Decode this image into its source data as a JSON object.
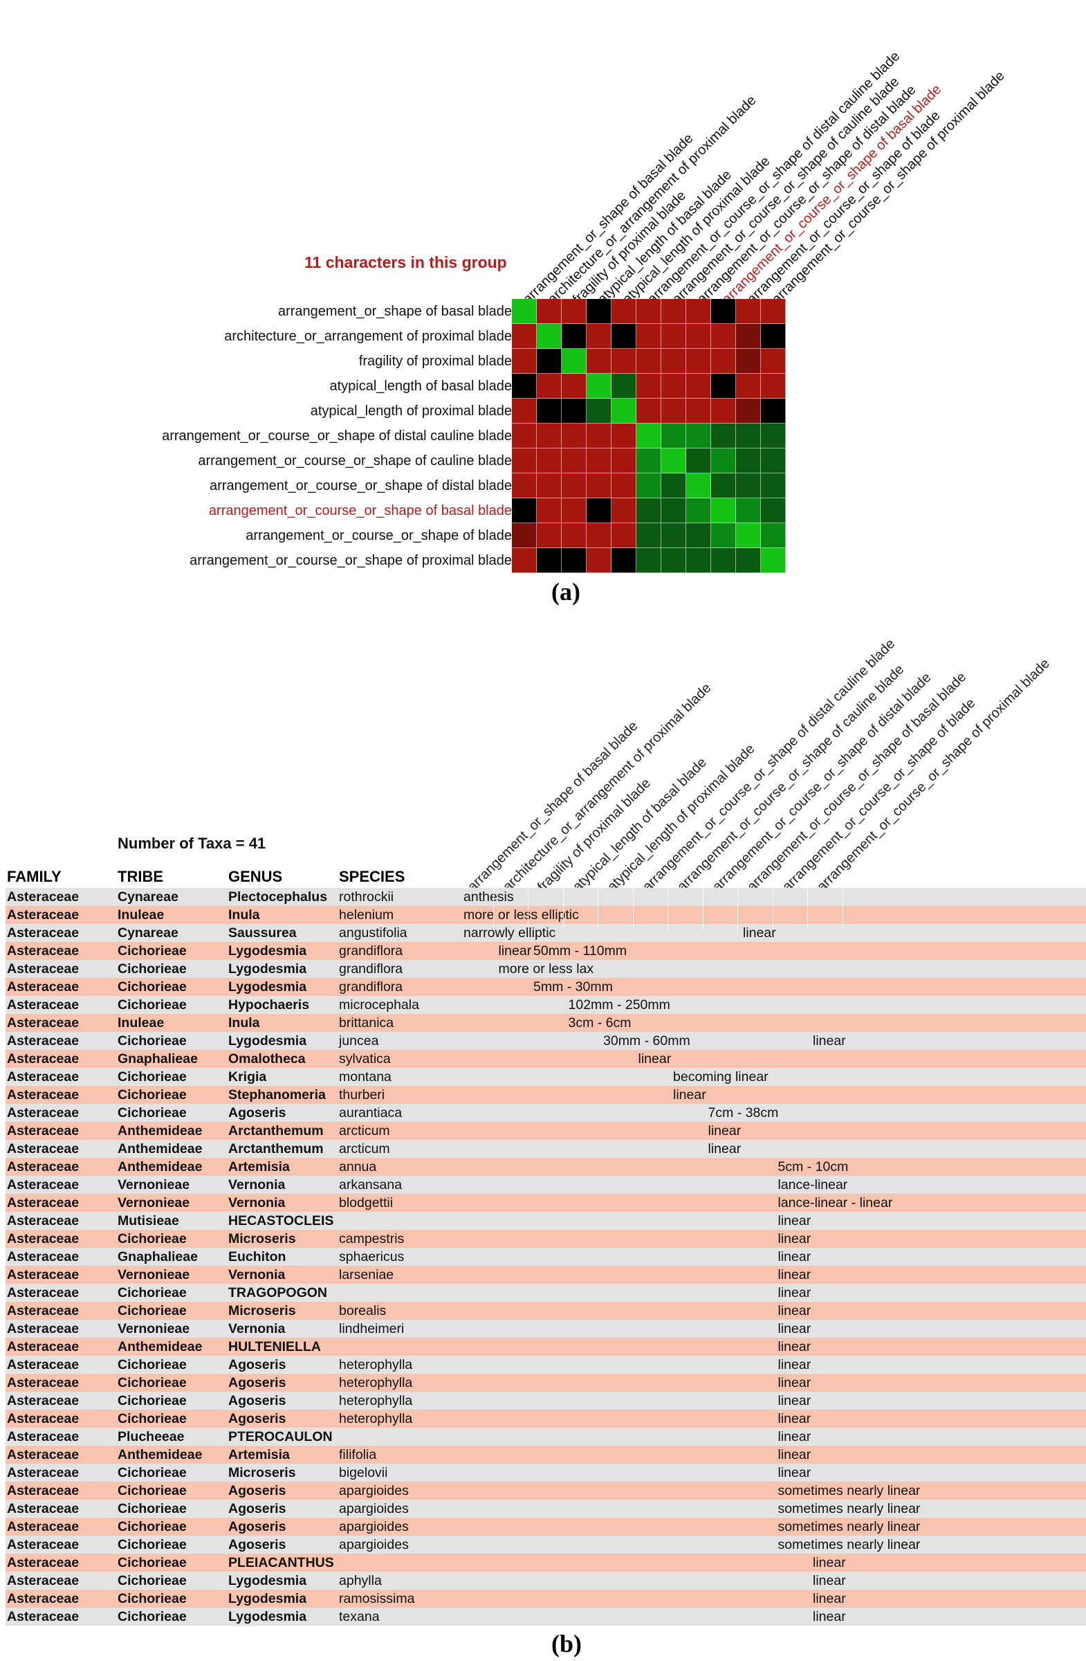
{
  "panel_a": {
    "group_title": "11 characters in this group",
    "highlight_index": 8,
    "characters": [
      "arrangement_or_shape of basal blade",
      "architecture_or_arrangement of proximal blade",
      "fragility of proximal blade",
      "atypical_length of basal blade",
      "atypical_length of proximal blade",
      "arrangement_or_course_or_shape of distal cauline blade",
      "arrangement_or_course_or_shape of cauline blade",
      "arrangement_or_course_or_shape of distal blade",
      "arrangement_or_course_or_shape of basal blade",
      "arrangement_or_course_or_shape of blade",
      "arrangement_or_course_or_shape of proximal blade"
    ],
    "colors": {
      "G": "#14c214",
      "g": "#0a8a14",
      "d": "#0a5a12",
      "k": "#0c3a0c",
      "R": "#a6180f",
      "r": "#7a0f0a",
      "B": "#000000"
    },
    "matrix": [
      "GRRBRRRRBRR",
      "RGBRBRRRRrB",
      "RBGRRRRRRrR",
      "BRRGdRRRBRR",
      "RBBdGRRRRrB",
      "RRRRRGggddd",
      "RRRRRgGdgdd",
      "RRRRRgdGddd",
      "BRRBRddgGgd",
      "rRRRRdddgGg",
      "RBBRBdddddG"
    ],
    "caption": "(a)"
  },
  "panel_b": {
    "taxa_count_label": "Number of Taxa = 41",
    "headers": [
      "FAMILY",
      "TRIBE",
      "GENUS",
      "SPECIES"
    ],
    "characters": [
      "arrangement_or_shape of basal blade",
      "architecture_or_arrangement of proximal blade",
      "fragility of proximal blade",
      "atypical_length of basal blade",
      "atypical_length of proximal blade",
      "arrangement_or_course_or_shape of distal cauline blade",
      "arrangement_or_course_or_shape of cauline blade",
      "arrangement_or_course_or_shape of distal blade",
      "arrangement_or_course_or_shape of basal blade",
      "arrangement_or_course_or_shape of blade",
      "arrangement_or_course_or_shape of proximal blade"
    ],
    "rows": [
      {
        "family": "Asteraceae",
        "tribe": "Cynareae",
        "genus": "Plectocephalus",
        "species": "rothrockii",
        "values": [
          [
            0,
            "anthesis"
          ]
        ]
      },
      {
        "family": "Asteraceae",
        "tribe": "Inuleae",
        "genus": "Inula",
        "species": "helenium",
        "values": [
          [
            0,
            "more or less elliptic"
          ]
        ]
      },
      {
        "family": "Asteraceae",
        "tribe": "Cynareae",
        "genus": "Saussurea",
        "species": "angustifolia",
        "values": [
          [
            0,
            "narrowly elliptic"
          ],
          [
            8,
            "linear"
          ]
        ]
      },
      {
        "family": "Asteraceae",
        "tribe": "Cichorieae",
        "genus": "Lygodesmia",
        "species": "grandiflora",
        "values": [
          [
            1,
            "linear"
          ],
          [
            2,
            "50mm - 110mm"
          ]
        ]
      },
      {
        "family": "Asteraceae",
        "tribe": "Cichorieae",
        "genus": "Lygodesmia",
        "species": "grandiflora",
        "values": [
          [
            1,
            "more or less lax"
          ]
        ]
      },
      {
        "family": "Asteraceae",
        "tribe": "Cichorieae",
        "genus": "Lygodesmia",
        "species": "grandiflora",
        "values": [
          [
            2,
            "5mm - 30mm"
          ]
        ]
      },
      {
        "family": "Asteraceae",
        "tribe": "Cichorieae",
        "genus": "Hypochaeris",
        "species": "microcephala",
        "values": [
          [
            3,
            "102mm - 250mm"
          ]
        ]
      },
      {
        "family": "Asteraceae",
        "tribe": "Inuleae",
        "genus": "Inula",
        "species": "brittanica",
        "values": [
          [
            3,
            "3cm - 6cm"
          ]
        ]
      },
      {
        "family": "Asteraceae",
        "tribe": "Cichorieae",
        "genus": "Lygodesmia",
        "species": "juncea",
        "values": [
          [
            4,
            "30mm - 60mm"
          ],
          [
            10,
            "linear"
          ]
        ]
      },
      {
        "family": "Asteraceae",
        "tribe": "Gnaphalieae",
        "genus": "Omalotheca",
        "species": "sylvatica",
        "values": [
          [
            5,
            "linear"
          ]
        ]
      },
      {
        "family": "Asteraceae",
        "tribe": "Cichorieae",
        "genus": "Krigia",
        "species": "montana",
        "values": [
          [
            6,
            "becoming linear"
          ]
        ]
      },
      {
        "family": "Asteraceae",
        "tribe": "Cichorieae",
        "genus": "Stephanomeria",
        "species": "thurberi",
        "values": [
          [
            6,
            "linear"
          ]
        ]
      },
      {
        "family": "Asteraceae",
        "tribe": "Cichorieae",
        "genus": "Agoseris",
        "species": "aurantiaca",
        "values": [
          [
            7,
            "7cm - 38cm"
          ]
        ]
      },
      {
        "family": "Asteraceae",
        "tribe": "Anthemideae",
        "genus": "Arctanthemum",
        "species": "arcticum",
        "values": [
          [
            7,
            "linear"
          ]
        ]
      },
      {
        "family": "Asteraceae",
        "tribe": "Anthemideae",
        "genus": "Arctanthemum",
        "species": "arcticum",
        "values": [
          [
            7,
            "linear"
          ]
        ]
      },
      {
        "family": "Asteraceae",
        "tribe": "Anthemideae",
        "genus": "Artemisia",
        "species": "annua",
        "values": [
          [
            9,
            "5cm - 10cm"
          ]
        ]
      },
      {
        "family": "Asteraceae",
        "tribe": "Vernonieae",
        "genus": "Vernonia",
        "species": "arkansana",
        "values": [
          [
            9,
            "lance-linear"
          ]
        ]
      },
      {
        "family": "Asteraceae",
        "tribe": "Vernonieae",
        "genus": "Vernonia",
        "species": "blodgettii",
        "values": [
          [
            9,
            "lance-linear - linear"
          ]
        ]
      },
      {
        "family": "Asteraceae",
        "tribe": "Mutisieae",
        "genus": "HECASTOCLEIS",
        "species": "",
        "values": [
          [
            9,
            "linear"
          ]
        ]
      },
      {
        "family": "Asteraceae",
        "tribe": "Cichorieae",
        "genus": "Microseris",
        "species": "campestris",
        "values": [
          [
            9,
            "linear"
          ]
        ]
      },
      {
        "family": "Asteraceae",
        "tribe": "Gnaphalieae",
        "genus": "Euchiton",
        "species": "sphaericus",
        "values": [
          [
            9,
            "linear"
          ]
        ]
      },
      {
        "family": "Asteraceae",
        "tribe": "Vernonieae",
        "genus": "Vernonia",
        "species": "larseniae",
        "values": [
          [
            9,
            "linear"
          ]
        ]
      },
      {
        "family": "Asteraceae",
        "tribe": "Cichorieae",
        "genus": "TRAGOPOGON",
        "species": "",
        "values": [
          [
            9,
            "linear"
          ]
        ]
      },
      {
        "family": "Asteraceae",
        "tribe": "Cichorieae",
        "genus": "Microseris",
        "species": "borealis",
        "values": [
          [
            9,
            "linear"
          ]
        ]
      },
      {
        "family": "Asteraceae",
        "tribe": "Vernonieae",
        "genus": "Vernonia",
        "species": "lindheimeri",
        "values": [
          [
            9,
            "linear"
          ]
        ]
      },
      {
        "family": "Asteraceae",
        "tribe": "Anthemideae",
        "genus": "HULTENIELLA",
        "species": "",
        "values": [
          [
            9,
            "linear"
          ]
        ]
      },
      {
        "family": "Asteraceae",
        "tribe": "Cichorieae",
        "genus": "Agoseris",
        "species": "heterophylla",
        "values": [
          [
            9,
            "linear"
          ]
        ]
      },
      {
        "family": "Asteraceae",
        "tribe": "Cichorieae",
        "genus": "Agoseris",
        "species": "heterophylla",
        "values": [
          [
            9,
            "linear"
          ]
        ]
      },
      {
        "family": "Asteraceae",
        "tribe": "Cichorieae",
        "genus": "Agoseris",
        "species": "heterophylla",
        "values": [
          [
            9,
            "linear"
          ]
        ]
      },
      {
        "family": "Asteraceae",
        "tribe": "Cichorieae",
        "genus": "Agoseris",
        "species": "heterophylla",
        "values": [
          [
            9,
            "linear"
          ]
        ]
      },
      {
        "family": "Asteraceae",
        "tribe": "Plucheeae",
        "genus": "PTEROCAULON",
        "species": "",
        "values": [
          [
            9,
            "linear"
          ]
        ]
      },
      {
        "family": "Asteraceae",
        "tribe": "Anthemideae",
        "genus": "Artemisia",
        "species": "filifolia",
        "values": [
          [
            9,
            "linear"
          ]
        ]
      },
      {
        "family": "Asteraceae",
        "tribe": "Cichorieae",
        "genus": "Microseris",
        "species": "bigelovii",
        "values": [
          [
            9,
            "linear"
          ]
        ]
      },
      {
        "family": "Asteraceae",
        "tribe": "Cichorieae",
        "genus": "Agoseris",
        "species": "apargioides",
        "values": [
          [
            9,
            "sometimes nearly linear"
          ]
        ]
      },
      {
        "family": "Asteraceae",
        "tribe": "Cichorieae",
        "genus": "Agoseris",
        "species": "apargioides",
        "values": [
          [
            9,
            "sometimes nearly linear"
          ]
        ]
      },
      {
        "family": "Asteraceae",
        "tribe": "Cichorieae",
        "genus": "Agoseris",
        "species": "apargioides",
        "values": [
          [
            9,
            "sometimes nearly linear"
          ]
        ]
      },
      {
        "family": "Asteraceae",
        "tribe": "Cichorieae",
        "genus": "Agoseris",
        "species": "apargioides",
        "values": [
          [
            9,
            "sometimes nearly linear"
          ]
        ]
      },
      {
        "family": "Asteraceae",
        "tribe": "Cichorieae",
        "genus": "PLEIACANTHUS",
        "species": "",
        "values": [
          [
            10,
            "linear"
          ]
        ]
      },
      {
        "family": "Asteraceae",
        "tribe": "Cichorieae",
        "genus": "Lygodesmia",
        "species": "aphylla",
        "values": [
          [
            10,
            "linear"
          ]
        ]
      },
      {
        "family": "Asteraceae",
        "tribe": "Cichorieae",
        "genus": "Lygodesmia",
        "species": "ramosissima",
        "values": [
          [
            10,
            "linear"
          ]
        ]
      },
      {
        "family": "Asteraceae",
        "tribe": "Cichorieae",
        "genus": "Lygodesmia",
        "species": "texana",
        "values": [
          [
            10,
            "linear"
          ]
        ]
      }
    ],
    "caption": "(b)"
  }
}
